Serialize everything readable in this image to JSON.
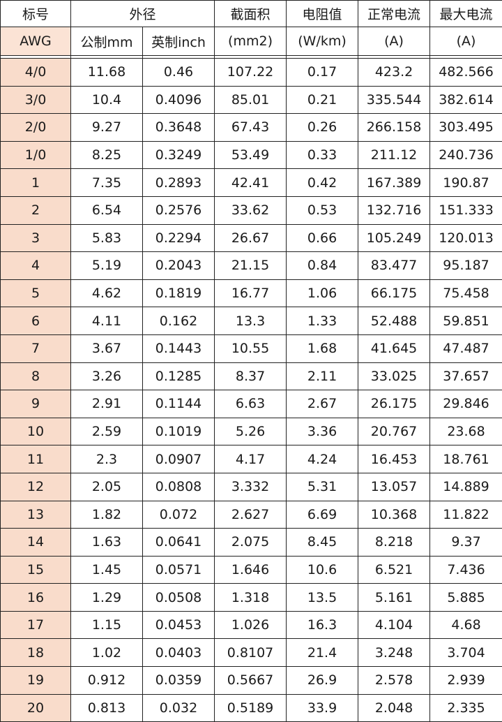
{
  "header": {
    "row1": {
      "gauge": "标号",
      "outer_diameter": "外径",
      "area": "截面积",
      "resistance": "电阻值",
      "normal_current": "正常电流",
      "max_current": "最大电流"
    },
    "row2": {
      "gauge": "AWG",
      "metric": "公制mm",
      "imperial": "英制inch",
      "area_unit": "(mm2)",
      "resistance_unit": "(W/km)",
      "normal_unit": "(A)",
      "max_unit": "(A)"
    }
  },
  "colors": {
    "awg_highlight": "#f9dccb",
    "border": "#222222"
  },
  "rows": [
    [
      "4/0",
      "11.68",
      "0.46",
      "107.22",
      "0.17",
      "423.2",
      "482.566"
    ],
    [
      "3/0",
      "10.4",
      "0.4096",
      "85.01",
      "0.21",
      "335.544",
      "382.614"
    ],
    [
      "2/0",
      "9.27",
      "0.3648",
      "67.43",
      "0.26",
      "266.158",
      "303.495"
    ],
    [
      "1/0",
      "8.25",
      "0.3249",
      "53.49",
      "0.33",
      "211.12",
      "240.736"
    ],
    [
      "1",
      "7.35",
      "0.2893",
      "42.41",
      "0.42",
      "167.389",
      "190.87"
    ],
    [
      "2",
      "6.54",
      "0.2576",
      "33.62",
      "0.53",
      "132.716",
      "151.333"
    ],
    [
      "3",
      "5.83",
      "0.2294",
      "26.67",
      "0.66",
      "105.249",
      "120.013"
    ],
    [
      "4",
      "5.19",
      "0.2043",
      "21.15",
      "0.84",
      "83.477",
      "95.187"
    ],
    [
      "5",
      "4.62",
      "0.1819",
      "16.77",
      "1.06",
      "66.175",
      "75.458"
    ],
    [
      "6",
      "4.11",
      "0.162",
      "13.3",
      "1.33",
      "52.488",
      "59.851"
    ],
    [
      "7",
      "3.67",
      "0.1443",
      "10.55",
      "1.68",
      "41.645",
      "47.487"
    ],
    [
      "8",
      "3.26",
      "0.1285",
      "8.37",
      "2.11",
      "33.025",
      "37.657"
    ],
    [
      "9",
      "2.91",
      "0.1144",
      "6.63",
      "2.67",
      "26.175",
      "29.846"
    ],
    [
      "10",
      "2.59",
      "0.1019",
      "5.26",
      "3.36",
      "20.767",
      "23.68"
    ],
    [
      "11",
      "2.3",
      "0.0907",
      "4.17",
      "4.24",
      "16.453",
      "18.761"
    ],
    [
      "12",
      "2.05",
      "0.0808",
      "3.332",
      "5.31",
      "13.057",
      "14.889"
    ],
    [
      "13",
      "1.82",
      "0.072",
      "2.627",
      "6.69",
      "10.368",
      "11.822"
    ],
    [
      "14",
      "1.63",
      "0.0641",
      "2.075",
      "8.45",
      "8.218",
      "9.37"
    ],
    [
      "15",
      "1.45",
      "0.0571",
      "1.646",
      "10.6",
      "6.521",
      "7.436"
    ],
    [
      "16",
      "1.29",
      "0.0508",
      "1.318",
      "13.5",
      "5.161",
      "5.885"
    ],
    [
      "17",
      "1.15",
      "0.0453",
      "1.026",
      "16.3",
      "4.104",
      "4.68"
    ],
    [
      "18",
      "1.02",
      "0.0403",
      "0.8107",
      "21.4",
      "3.248",
      "3.704"
    ],
    [
      "19",
      "0.912",
      "0.0359",
      "0.5667",
      "26.9",
      "2.578",
      "2.939"
    ],
    [
      "20",
      "0.813",
      "0.032",
      "0.5189",
      "33.9",
      "2.048",
      "2.335"
    ]
  ]
}
